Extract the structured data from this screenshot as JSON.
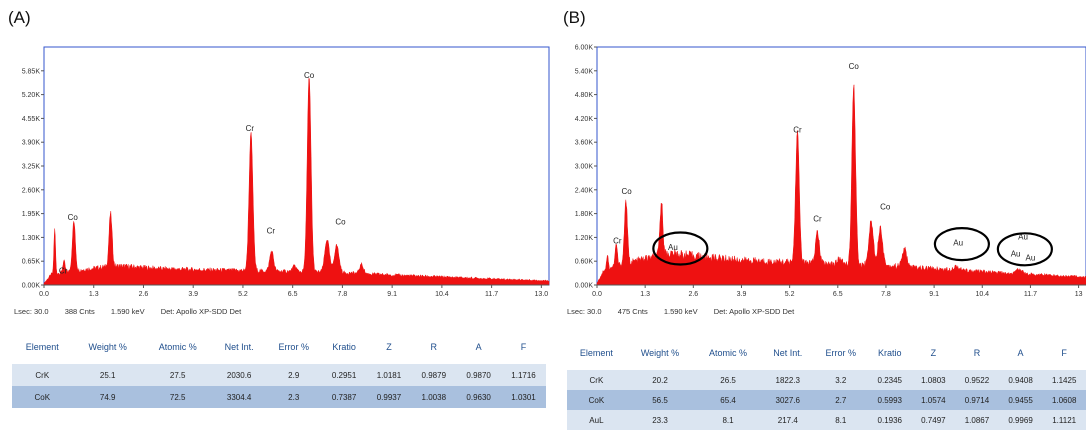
{
  "panels": [
    {
      "label": "(A)",
      "status": [
        "Lsec: 30.0",
        "388 Cnts",
        "1.590 keV",
        "Det: Apollo XP-SDD Det"
      ],
      "table": {
        "headers": [
          "Element",
          "Weight %",
          "Atomic %",
          "Net Int.",
          "Error %",
          "Kratio",
          "Z",
          "R",
          "A",
          "F"
        ],
        "rows": [
          [
            "CrK",
            "25.1",
            "27.5",
            "2030.6",
            "2.9",
            "0.2951",
            "1.0181",
            "0.9879",
            "0.9870",
            "1.1716"
          ],
          [
            "CoK",
            "74.9",
            "72.5",
            "3304.4",
            "2.3",
            "0.7387",
            "0.9937",
            "1.0038",
            "0.9630",
            "1.0301"
          ]
        ]
      }
    },
    {
      "label": "(B)",
      "status": [
        "Lsec: 30.0",
        "475 Cnts",
        "1.590 keV",
        "Det: Apollo XP-SDD Det"
      ],
      "table": {
        "headers": [
          "Element",
          "Weight %",
          "Atomic %",
          "Net Int.",
          "Error %",
          "Kratio",
          "Z",
          "R",
          "A",
          "F"
        ],
        "rows": [
          [
            "CrK",
            "20.2",
            "26.5",
            "1822.3",
            "3.2",
            "0.2345",
            "1.0803",
            "0.9522",
            "0.9408",
            "1.1425"
          ],
          [
            "CoK",
            "56.5",
            "65.4",
            "3027.6",
            "2.7",
            "0.5993",
            "1.0574",
            "0.9714",
            "0.9455",
            "1.0608"
          ],
          [
            "AuL",
            "23.3",
            "8.1",
            "217.4",
            "8.1",
            "0.1936",
            "0.7497",
            "1.0867",
            "0.9969",
            "1.1121"
          ]
        ]
      }
    }
  ],
  "chart_data": [
    {
      "type": "area",
      "title": "",
      "xlabel": "",
      "ylabel": "",
      "xlim": [
        0,
        13.2
      ],
      "ylim": [
        0,
        6.5
      ],
      "xticks": [
        "0.0",
        "1.3",
        "2.6",
        "3.9",
        "5.2",
        "6.5",
        "7.8",
        "9.1",
        "10.4",
        "11.7",
        "13.0"
      ],
      "yticks": [
        "0.00K",
        "0.65K",
        "1.30K",
        "1.95K",
        "2.60K",
        "3.25K",
        "3.90K",
        "4.55K",
        "5.20K",
        "5.85K"
      ],
      "color": "#ee1111",
      "background": [
        [
          0,
          0.05
        ],
        [
          0.2,
          0.3
        ],
        [
          1.0,
          0.42
        ],
        [
          1.6,
          0.5
        ],
        [
          2.0,
          0.52
        ],
        [
          3.0,
          0.45
        ],
        [
          4.0,
          0.42
        ],
        [
          5.0,
          0.4
        ],
        [
          6.0,
          0.38
        ],
        [
          7.0,
          0.36
        ],
        [
          8.0,
          0.33
        ],
        [
          9.0,
          0.28
        ],
        [
          10.0,
          0.24
        ],
        [
          11.0,
          0.2
        ],
        [
          12.0,
          0.16
        ],
        [
          13.2,
          0.12
        ]
      ],
      "peaks": [
        {
          "x": 0.28,
          "h": 1.25,
          "w": 0.02
        },
        {
          "x": 0.52,
          "h": 0.3,
          "w": 0.03
        },
        {
          "x": 0.78,
          "h": 1.35,
          "w": 0.04
        },
        {
          "x": 1.74,
          "h": 1.45,
          "w": 0.04
        },
        {
          "x": 5.41,
          "h": 3.75,
          "w": 0.05
        },
        {
          "x": 5.95,
          "h": 0.55,
          "w": 0.05
        },
        {
          "x": 6.55,
          "h": 0.15,
          "w": 0.05
        },
        {
          "x": 6.93,
          "h": 5.3,
          "w": 0.05
        },
        {
          "x": 7.4,
          "h": 0.9,
          "w": 0.06
        },
        {
          "x": 7.65,
          "h": 0.75,
          "w": 0.06
        },
        {
          "x": 8.3,
          "h": 0.25,
          "w": 0.05
        }
      ],
      "labels": [
        {
          "text": "Cr",
          "x": 0.5,
          "y": 0.32
        },
        {
          "text": "Co",
          "x": 0.75,
          "y": 1.78
        },
        {
          "text": "Cr",
          "x": 5.38,
          "y": 4.2
        },
        {
          "text": "Cr",
          "x": 5.93,
          "y": 1.4
        },
        {
          "text": "Co",
          "x": 6.93,
          "y": 5.65
        },
        {
          "text": "Co",
          "x": 7.75,
          "y": 1.65
        }
      ]
    },
    {
      "type": "area",
      "title": "",
      "xlabel": "",
      "ylabel": "",
      "xlim": [
        0,
        13.2
      ],
      "ylim": [
        0,
        6.0
      ],
      "xticks": [
        "0.0",
        "1.3",
        "2.6",
        "3.9",
        "5.2",
        "6.5",
        "7.8",
        "9.1",
        "10.4",
        "11.7",
        "13"
      ],
      "yticks": [
        "0.00K",
        "0.60K",
        "1.20K",
        "1.80K",
        "2.40K",
        "3.00K",
        "3.60K",
        "4.20K",
        "4.80K",
        "5.40K",
        "6.00K"
      ],
      "color": "#ee1111",
      "background": [
        [
          0,
          0.05
        ],
        [
          0.2,
          0.4
        ],
        [
          1.0,
          0.6
        ],
        [
          1.6,
          0.72
        ],
        [
          2.0,
          0.8
        ],
        [
          3.0,
          0.7
        ],
        [
          4.0,
          0.62
        ],
        [
          5.0,
          0.58
        ],
        [
          6.0,
          0.55
        ],
        [
          7.0,
          0.52
        ],
        [
          8.0,
          0.48
        ],
        [
          9.0,
          0.42
        ],
        [
          10.0,
          0.36
        ],
        [
          11.0,
          0.3
        ],
        [
          12.0,
          0.26
        ],
        [
          13.2,
          0.2
        ]
      ],
      "peaks": [
        {
          "x": 0.28,
          "h": 0.35,
          "w": 0.02
        },
        {
          "x": 0.52,
          "h": 0.55,
          "w": 0.03
        },
        {
          "x": 0.78,
          "h": 1.6,
          "w": 0.04
        },
        {
          "x": 1.74,
          "h": 1.35,
          "w": 0.04
        },
        {
          "x": 5.41,
          "h": 3.3,
          "w": 0.05
        },
        {
          "x": 5.95,
          "h": 0.8,
          "w": 0.05
        },
        {
          "x": 6.55,
          "h": 0.15,
          "w": 0.05
        },
        {
          "x": 6.93,
          "h": 4.5,
          "w": 0.05
        },
        {
          "x": 7.4,
          "h": 1.1,
          "w": 0.06
        },
        {
          "x": 7.65,
          "h": 0.95,
          "w": 0.06
        },
        {
          "x": 8.3,
          "h": 0.45,
          "w": 0.06
        },
        {
          "x": 9.7,
          "h": 0.1,
          "w": 0.08
        },
        {
          "x": 11.4,
          "h": 0.12,
          "w": 0.08
        }
      ],
      "labels": [
        {
          "text": "Cr",
          "x": 0.55,
          "y": 1.05
        },
        {
          "text": "Co",
          "x": 0.8,
          "y": 2.3
        },
        {
          "text": "Au",
          "x": 2.05,
          "y": 0.88
        },
        {
          "text": "Cr",
          "x": 5.41,
          "y": 3.85
        },
        {
          "text": "Cr",
          "x": 5.95,
          "y": 1.6
        },
        {
          "text": "Co",
          "x": 6.93,
          "y": 5.45
        },
        {
          "text": "Co",
          "x": 7.78,
          "y": 1.9
        },
        {
          "text": "Au",
          "x": 9.75,
          "y": 1.0
        },
        {
          "text": "Au",
          "x": 11.5,
          "y": 1.15
        },
        {
          "text": "Au",
          "x": 11.3,
          "y": 0.72
        },
        {
          "text": "Au",
          "x": 11.7,
          "y": 0.62
        }
      ],
      "circles": [
        {
          "x": 2.25,
          "y": 0.92
        },
        {
          "x": 9.85,
          "y": 1.03
        },
        {
          "x": 11.55,
          "y": 0.9
        }
      ]
    }
  ]
}
